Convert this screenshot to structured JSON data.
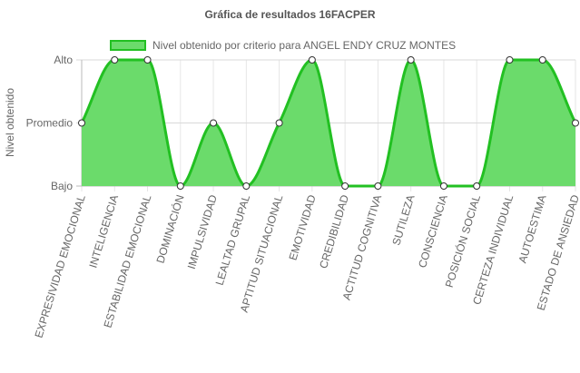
{
  "chart_data": {
    "type": "area",
    "title": "Gráfica de resultados 16FACPER",
    "ylabel": "Nivel obtenido",
    "xlabel": "",
    "y_categories": [
      "Bajo",
      "Promedio",
      "Alto"
    ],
    "categories": [
      "EXPRESIVIDAD EMOCIONAL",
      "INTELIGENCIA",
      "ESTABILIDAD EMOCIONAL",
      "DOMINACIÓN",
      "IMPULSIVIDAD",
      "LEALTAD GRUPAL",
      "APTITUD SITUACIONAL",
      "EMOTIVIDAD",
      "CREDIBILIDAD",
      "ACTITUD COGNITIVA",
      "SUTILEZA",
      "CONSCIENCIA",
      "POSICIÓN SOCIAL",
      "CERTEZA INDIVIDUAL",
      "AUTOESTIMA",
      "ESTADO DE ANSIEDAD"
    ],
    "series": [
      {
        "name": "Nivel obtenido por criterio para ANGEL ENDY CRUZ MONTES",
        "values": [
          "Promedio",
          "Alto",
          "Alto",
          "Bajo",
          "Promedio",
          "Bajo",
          "Promedio",
          "Alto",
          "Bajo",
          "Bajo",
          "Alto",
          "Bajo",
          "Bajo",
          "Alto",
          "Alto",
          "Promedio"
        ]
      }
    ],
    "grid": true,
    "legend_position": "top",
    "colors": {
      "line": "#22c022",
      "fill": "#6bdb6b",
      "grid": "#e6e6e6",
      "text": "#666666"
    }
  }
}
